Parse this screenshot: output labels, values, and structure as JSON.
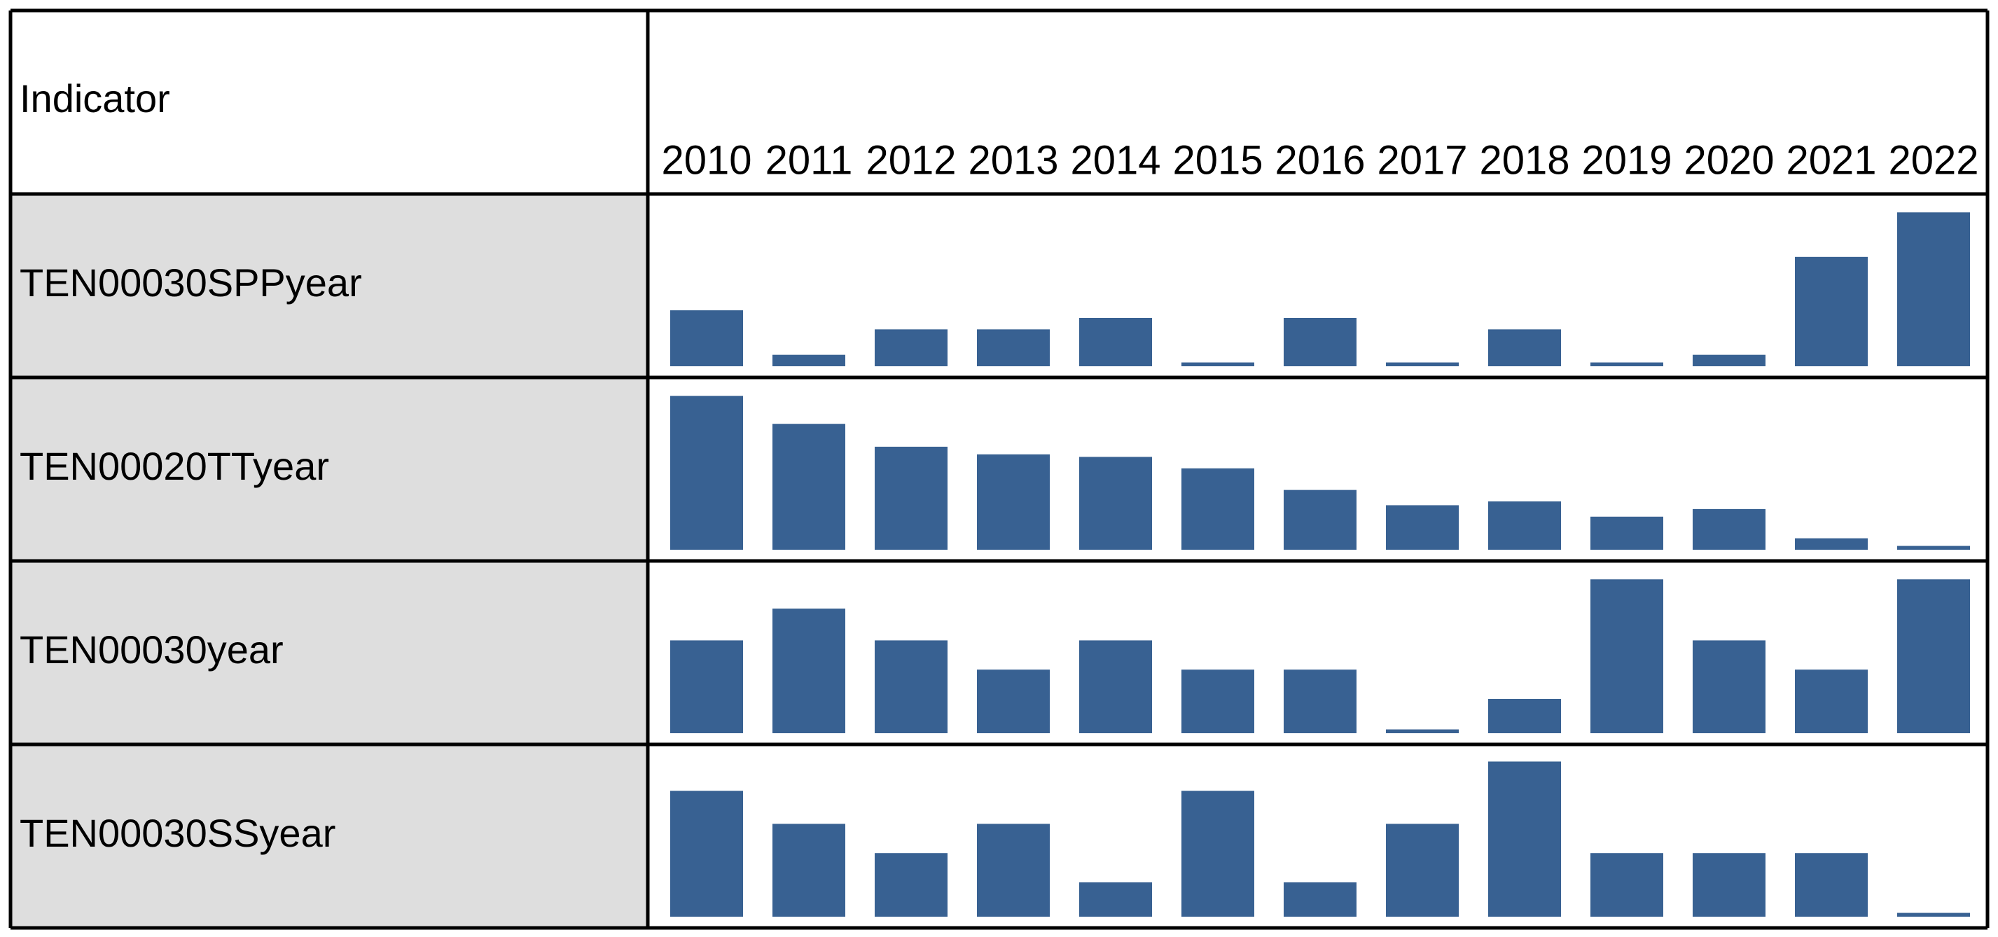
{
  "chart_data": {
    "type": "bar",
    "row_header": "Indicator",
    "categories": [
      "2010",
      "2011",
      "2012",
      "2013",
      "2014",
      "2015",
      "2016",
      "2017",
      "2018",
      "2019",
      "2020",
      "2021",
      "2022"
    ],
    "ylim": [
      0,
      125
    ],
    "series": [
      {
        "name": "TEN00030SPPyear",
        "color": "#386192",
        "values": [
          44,
          9,
          29,
          29,
          38,
          3,
          38,
          3,
          29,
          3,
          9,
          86,
          121
        ]
      },
      {
        "name": "TEN00020TTyear",
        "color": "#386192",
        "values": [
          121,
          99,
          81,
          75,
          73,
          64,
          47,
          35,
          38,
          26,
          32,
          9,
          3
        ]
      },
      {
        "name": "TEN00030year",
        "color": "#386192",
        "values": [
          73,
          98,
          73,
          50,
          73,
          50,
          50,
          3,
          27,
          121,
          73,
          50,
          121
        ]
      },
      {
        "name": "TEN00030SSyear",
        "color": "#386192",
        "values": [
          99,
          73,
          50,
          73,
          27,
          99,
          27,
          73,
          122,
          50,
          50,
          50,
          3
        ]
      }
    ]
  }
}
